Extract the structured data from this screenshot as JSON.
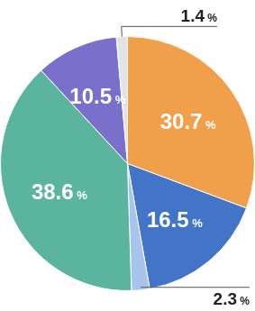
{
  "chart_data": {
    "type": "pie",
    "values": [
      30.7,
      16.5,
      2.3,
      38.6,
      10.5,
      1.4
    ],
    "value_labels": [
      "30.7 %",
      "16.5 %",
      "2.3 %",
      "38.6 %",
      "10.5 %",
      "1.4 %"
    ],
    "colors": [
      "#f0a04b",
      "#4274c8",
      "#a9c3ef",
      "#5bb49e",
      "#7a6fcb",
      "#e3e3e3"
    ],
    "data_labels": true
  }
}
